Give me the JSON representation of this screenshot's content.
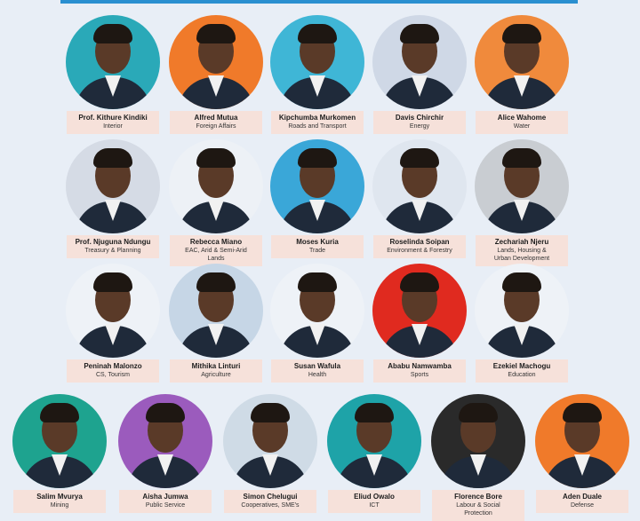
{
  "rows": [
    {
      "members": [
        {
          "name": "Prof. Kithure Kindiki",
          "role": "Interior"
        },
        {
          "name": "Alfred Mutua",
          "role": "Foreign Affairs"
        },
        {
          "name": "Kipchumba Murkomen",
          "role": "Roads and Transport"
        },
        {
          "name": "Davis Chirchir",
          "role": "Energy"
        },
        {
          "name": "Alice Wahome",
          "role": "Water"
        }
      ]
    },
    {
      "members": [
        {
          "name": "Prof. Njuguna Ndungu",
          "role": "Treasury & Planning"
        },
        {
          "name": "Rebecca Miano",
          "role": "EAC, Arid & Semi-Arid Lands"
        },
        {
          "name": "Moses Kuria",
          "role": "Trade"
        },
        {
          "name": "Roselinda Soipan",
          "role": "Environment & Forestry"
        },
        {
          "name": "Zechariah Njeru",
          "role": "Lands, Housing & Urban Development"
        }
      ]
    },
    {
      "members": [
        {
          "name": "Peninah Malonzo",
          "role": "CS, Tourism"
        },
        {
          "name": "Mithika Linturi",
          "role": "Agriculture"
        },
        {
          "name": "Susan Wafula",
          "role": "Health"
        },
        {
          "name": "Ababu Namwamba",
          "role": "Sports"
        },
        {
          "name": "Ezekiel Machogu",
          "role": "Education"
        }
      ]
    },
    {
      "members": [
        {
          "name": "Salim Mvurya",
          "role": "Mining"
        },
        {
          "name": "Aisha Jumwa",
          "role": "Public Service"
        },
        {
          "name": "Simon Chelugui",
          "role": "Cooperatives, SME's"
        },
        {
          "name": "Eliud Owalo",
          "role": "ICT"
        },
        {
          "name": "Florence Bore",
          "role": "Labour & Social Protection"
        },
        {
          "name": "Aden Duale",
          "role": "Defense"
        }
      ]
    }
  ]
}
